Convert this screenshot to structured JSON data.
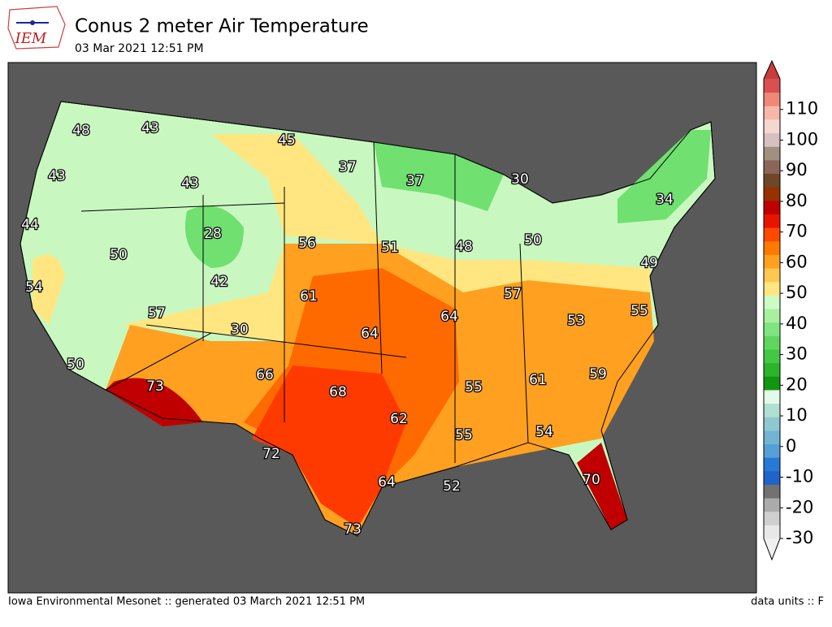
{
  "header": {
    "logo": "IEM",
    "title": "Conus 2 meter Air Temperature",
    "subtitle": "03 Mar 2021 12:51 PM"
  },
  "map": {
    "stations": [
      48,
      43,
      45,
      37,
      37,
      30,
      43,
      43,
      34,
      44,
      28,
      56,
      51,
      48,
      50,
      50,
      49,
      54,
      42,
      61,
      57,
      55,
      57,
      30,
      64,
      64,
      53,
      50,
      73,
      66,
      68,
      55,
      61,
      59,
      62,
      55,
      54,
      72,
      64,
      52,
      70,
      73
    ]
  },
  "colorbar": {
    "lim": [
      -30,
      120
    ],
    "ticks": [
      -30,
      -20,
      -10,
      0,
      10,
      20,
      30,
      40,
      50,
      60,
      70,
      80,
      90,
      100,
      110
    ],
    "colors": [
      "#e8e8e8",
      "#cfcfcf",
      "#ababab",
      "#727272",
      "#1f64c8",
      "#2878d6",
      "#55a0d6",
      "#72b4d2",
      "#90c8d0",
      "#b0e0d2",
      "#e4fae8",
      "#129612",
      "#2cb42c",
      "#44c844",
      "#60d660",
      "#80e480",
      "#a8f0a0",
      "#ccfcc4",
      "#ffe680",
      "#ffc850",
      "#ffa020",
      "#ff7a00",
      "#ff4800",
      "#e81400",
      "#c00000",
      "#963200",
      "#6e4628",
      "#8c6458",
      "#a09080",
      "#d8c0c0",
      "#f4d8d0",
      "#f8b8a8",
      "#f08878",
      "#d85050"
    ],
    "top_color": "#c83c3c",
    "bottom_color": "#f0f0f0"
  },
  "footer": {
    "left": "Iowa Environmental Mesonet :: generated 03 March 2021 12:51 PM",
    "right": "data units :: F"
  }
}
